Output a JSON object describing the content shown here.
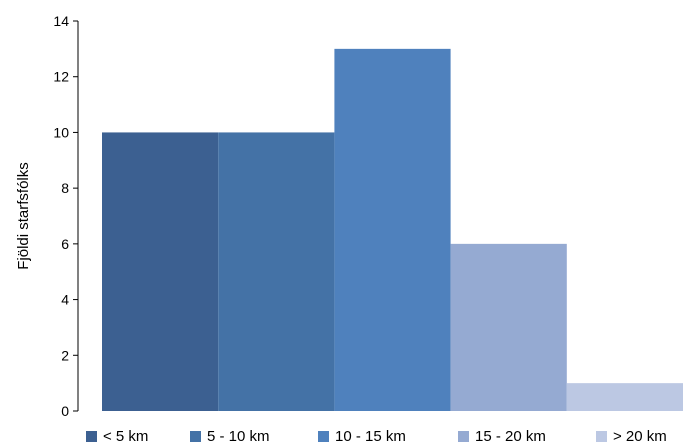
{
  "chart_data": {
    "type": "bar",
    "categories": [
      "< 5 km",
      "5 - 10 km",
      "10 - 15 km",
      "15 - 20 km",
      "> 20 km"
    ],
    "values": [
      10,
      10,
      13,
      6,
      1
    ],
    "colors": [
      "#3C6091",
      "#4472A6",
      "#4F81BD",
      "#95AAD2",
      "#BCC8E3"
    ],
    "title": "",
    "xlabel": "",
    "ylabel": "Fjöldi starfsfólks",
    "ylim": [
      0,
      14
    ],
    "yticks": [
      0,
      2,
      4,
      6,
      8,
      10,
      12,
      14
    ],
    "grid": false,
    "legend_position": "bottom"
  }
}
